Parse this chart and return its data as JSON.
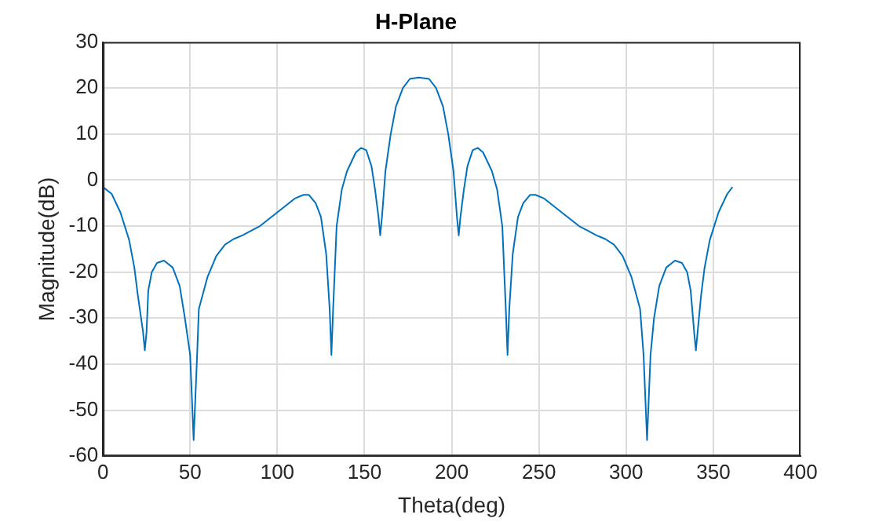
{
  "chart_data": {
    "type": "line",
    "title": "H-Plane",
    "xlabel": "Theta(deg)",
    "ylabel": "Magnitude(dB)",
    "x": [
      0,
      5,
      10,
      15,
      18,
      20,
      23,
      24,
      25,
      26,
      28,
      31,
      35,
      40,
      44,
      47,
      50,
      52,
      54,
      55,
      60,
      65,
      70,
      75,
      80,
      85,
      90,
      95,
      100,
      105,
      110,
      115,
      118,
      122,
      125,
      128,
      130,
      131,
      132,
      134,
      137,
      140,
      145,
      148,
      151,
      154,
      156,
      158,
      159,
      160,
      162,
      165,
      168,
      172,
      176,
      181,
      187,
      191,
      195,
      198,
      201,
      203,
      204,
      205,
      207,
      209,
      212,
      215,
      218,
      223,
      226,
      229,
      231,
      232,
      233,
      235,
      238,
      241,
      245,
      248,
      253,
      258,
      263,
      268,
      273,
      278,
      283,
      288,
      293,
      298,
      303,
      308,
      310,
      312,
      314,
      316,
      319,
      323,
      328,
      332,
      335,
      337,
      339,
      340,
      341,
      343,
      345,
      348,
      353,
      358,
      361
    ],
    "series": [
      {
        "color": "#0072bd",
        "values": [
          -1.5,
          -3,
          -7,
          -13,
          -19,
          -25,
          -33,
          -37,
          -33,
          -24,
          -20,
          -18,
          -17.5,
          -19,
          -23,
          -30,
          -38,
          -56.5,
          -38,
          -28,
          -21,
          -16.5,
          -14,
          -12.8,
          -12,
          -11,
          -10,
          -8.5,
          -7,
          -5.5,
          -4,
          -3.2,
          -3.2,
          -5,
          -8,
          -16,
          -28,
          -38,
          -28,
          -10,
          -2,
          2,
          6,
          7,
          6.5,
          3,
          -2,
          -8,
          -12,
          -8,
          2,
          10,
          16,
          20,
          22,
          22.3,
          22,
          20,
          16,
          10,
          2,
          -8,
          -12,
          -8,
          -2,
          3,
          6.5,
          7,
          6,
          2,
          -2,
          -10,
          -28,
          -38,
          -28,
          -16,
          -8,
          -5,
          -3.2,
          -3.2,
          -4,
          -5.5,
          -7,
          -8.5,
          -10,
          -11,
          -12,
          -12.8,
          -14,
          -16.5,
          -21,
          -28,
          -38,
          -56.5,
          -38,
          -30,
          -23,
          -19,
          -17.5,
          -18,
          -20,
          -24,
          -33,
          -37,
          -33,
          -25,
          -19,
          -13,
          -7,
          -3,
          -1.5
        ]
      }
    ],
    "xlim": [
      0,
      400
    ],
    "xticks": [
      0,
      50,
      100,
      150,
      200,
      250,
      300,
      350,
      400
    ],
    "ylim": [
      -60,
      30
    ],
    "yticks": [
      -60,
      -50,
      -40,
      -30,
      -20,
      -10,
      0,
      10,
      20,
      30
    ],
    "grid": true,
    "legend": false,
    "marker": "none",
    "line_style": "solid"
  }
}
